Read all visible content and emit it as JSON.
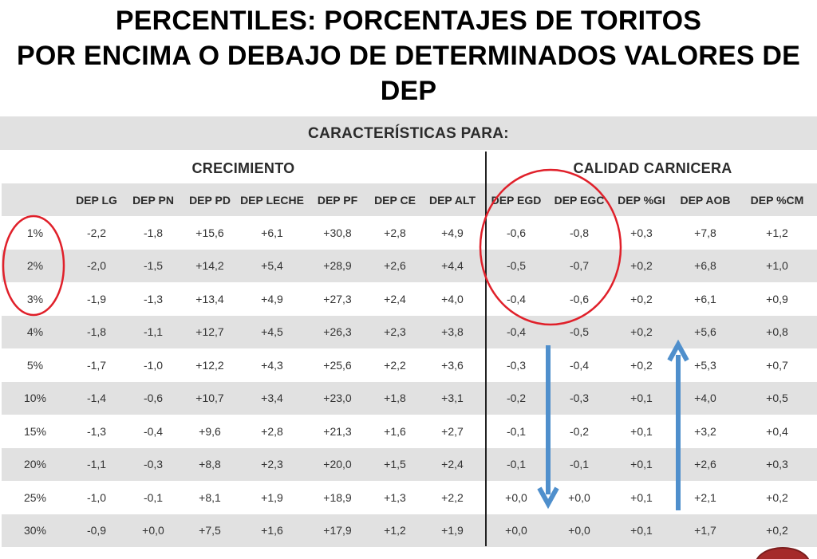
{
  "title": {
    "line1": "PERCENTILES: PORCENTAJES DE TORITOS",
    "line2": "POR ENCIMA O DEBAJO DE DETERMINADOS VALORES DE",
    "line3": "DEP"
  },
  "caption": "CARACTERÍSTICAS PARA:",
  "groups": {
    "growth": "CRECIMIENTO",
    "carcass": "CALIDAD CARNICERA"
  },
  "columns": [
    "",
    "DEP LG",
    "DEP PN",
    "DEP PD",
    "DEP LECHE",
    "DEP PF",
    "DEP CE",
    "DEP ALT",
    "DEP EGD",
    "DEP EGC",
    "DEP %GI",
    "DEP AOB",
    "DEP %CM"
  ],
  "rows": [
    [
      "1%",
      "-2,2",
      "-1,8",
      "+15,6",
      "+6,1",
      "+30,8",
      "+2,8",
      "+4,9",
      "-0,6",
      "-0,8",
      "+0,3",
      "+7,8",
      "+1,2"
    ],
    [
      "2%",
      "-2,0",
      "-1,5",
      "+14,2",
      "+5,4",
      "+28,9",
      "+2,6",
      "+4,4",
      "-0,5",
      "-0,7",
      "+0,2",
      "+6,8",
      "+1,0"
    ],
    [
      "3%",
      "-1,9",
      "-1,3",
      "+13,4",
      "+4,9",
      "+27,3",
      "+2,4",
      "+4,0",
      "-0,4",
      "-0,6",
      "+0,2",
      "+6,1",
      "+0,9"
    ],
    [
      "4%",
      "-1,8",
      "-1,1",
      "+12,7",
      "+4,5",
      "+26,3",
      "+2,3",
      "+3,8",
      "-0,4",
      "-0,5",
      "+0,2",
      "+5,6",
      "+0,8"
    ],
    [
      "5%",
      "-1,7",
      "-1,0",
      "+12,2",
      "+4,3",
      "+25,6",
      "+2,2",
      "+3,6",
      "-0,3",
      "-0,4",
      "+0,2",
      "+5,3",
      "+0,7"
    ],
    [
      "10%",
      "-1,4",
      "-0,6",
      "+10,7",
      "+3,4",
      "+23,0",
      "+1,8",
      "+3,1",
      "-0,2",
      "-0,3",
      "+0,1",
      "+4,0",
      "+0,5"
    ],
    [
      "15%",
      "-1,3",
      "-0,4",
      "+9,6",
      "+2,8",
      "+21,3",
      "+1,6",
      "+2,7",
      "-0,1",
      "-0,2",
      "+0,1",
      "+3,2",
      "+0,4"
    ],
    [
      "20%",
      "-1,1",
      "-0,3",
      "+8,8",
      "+2,3",
      "+20,0",
      "+1,5",
      "+2,4",
      "-0,1",
      "-0,1",
      "+0,1",
      "+2,6",
      "+0,3"
    ],
    [
      "25%",
      "-1,0",
      "-0,1",
      "+8,1",
      "+1,9",
      "+18,9",
      "+1,3",
      "+2,2",
      "+0,0",
      "+0,0",
      "+0,1",
      "+2,1",
      "+0,2"
    ],
    [
      "30%",
      "-0,9",
      "+0,0",
      "+7,5",
      "+1,6",
      "+17,9",
      "+1,2",
      "+1,9",
      "+0,0",
      "+0,0",
      "+0,1",
      "+1,7",
      "+0,2"
    ]
  ],
  "colors": {
    "band": "#e1e1e1",
    "circle": "#e0202a",
    "arrow": "#4f8fcc"
  }
}
